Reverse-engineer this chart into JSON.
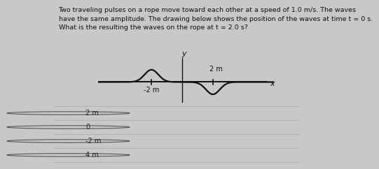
{
  "title_text": "Two traveling pulses on a rope move toward each other at a speed of 1.0 m/s. The waves\nhave the same amplitude. The drawing below shows the position of the waves at time t = 0 s.\nWhat is the resulting the waves on the rope at t = 2.0 s?",
  "title_fontsize": 6.8,
  "bg_color": "#c8c8c8",
  "wave_color": "#111111",
  "axis_color": "#111111",
  "label_2m_left": "-2 m",
  "label_2m_right": "2 m",
  "label_y": "y",
  "label_x": "x",
  "choices": [
    "2 m",
    "0",
    "-2 m",
    "4 m"
  ],
  "choice_fontsize": 7.0,
  "divider_color": "#aaaaaa"
}
